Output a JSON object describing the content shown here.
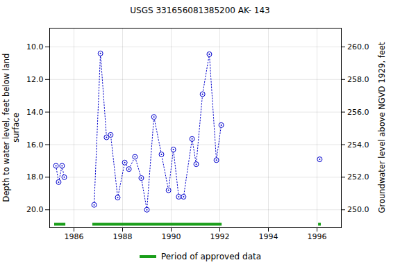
{
  "chart_data": {
    "type": "line",
    "title": "USGS 331656081385200 AK- 143",
    "y_label": "Depth to water level, feet below land surface",
    "y2_label": "Groundwater level above NGVD 1929, feet",
    "x": [
      1985.26,
      1985.37,
      1985.51,
      1985.6,
      null,
      1986.83,
      1987.09,
      1987.34,
      1987.51,
      1987.8,
      1988.09,
      1988.26,
      1988.51,
      1988.77,
      1989.0,
      1989.29,
      1989.6,
      1989.89,
      1990.09,
      1990.31,
      1990.51,
      1990.86,
      1991.03,
      1991.29,
      1991.57,
      1991.86,
      1992.06,
      null,
      1996.11
    ],
    "values": [
      17.3,
      18.3,
      17.3,
      18.0,
      null,
      19.7,
      10.4,
      15.55,
      15.4,
      19.25,
      17.1,
      17.5,
      16.75,
      18.05,
      20.0,
      14.3,
      16.6,
      18.8,
      16.3,
      19.2,
      19.2,
      15.65,
      17.2,
      12.9,
      10.45,
      16.95,
      14.8,
      null,
      16.9
    ],
    "color": "#0000cc",
    "marker": "circle",
    "line_style": "dotted",
    "approved_periods": {
      "name": "Period of approved data",
      "color": "#1a9e1a",
      "ranges": [
        [
          1985.2,
          1985.66
        ],
        [
          1986.77,
          1992.09
        ],
        [
          1996.06,
          1996.17
        ]
      ]
    },
    "xlim": [
      1985.0,
      1997.0
    ],
    "xticks": [
      1986,
      1988,
      1990,
      1992,
      1994,
      1996
    ],
    "ylim": [
      21.1,
      8.85
    ],
    "yticks": [
      {
        "value": 10,
        "label": "10.0"
      },
      {
        "value": 12,
        "label": "12.0"
      },
      {
        "value": 14,
        "label": "14.0"
      },
      {
        "value": 16,
        "label": "16.0"
      },
      {
        "value": 18,
        "label": "18.0"
      },
      {
        "value": 20,
        "label": "20.0"
      }
    ],
    "y2lim": [
      248.9,
      261.15
    ],
    "y2ticks": [
      {
        "value": 250,
        "label": "250.0"
      },
      {
        "value": 252,
        "label": "252.0"
      },
      {
        "value": 254,
        "label": "254.0"
      },
      {
        "value": 256,
        "label": "256.0"
      },
      {
        "value": 258,
        "label": "258.0"
      },
      {
        "value": 260,
        "label": "260.0"
      }
    ],
    "grid": true
  }
}
